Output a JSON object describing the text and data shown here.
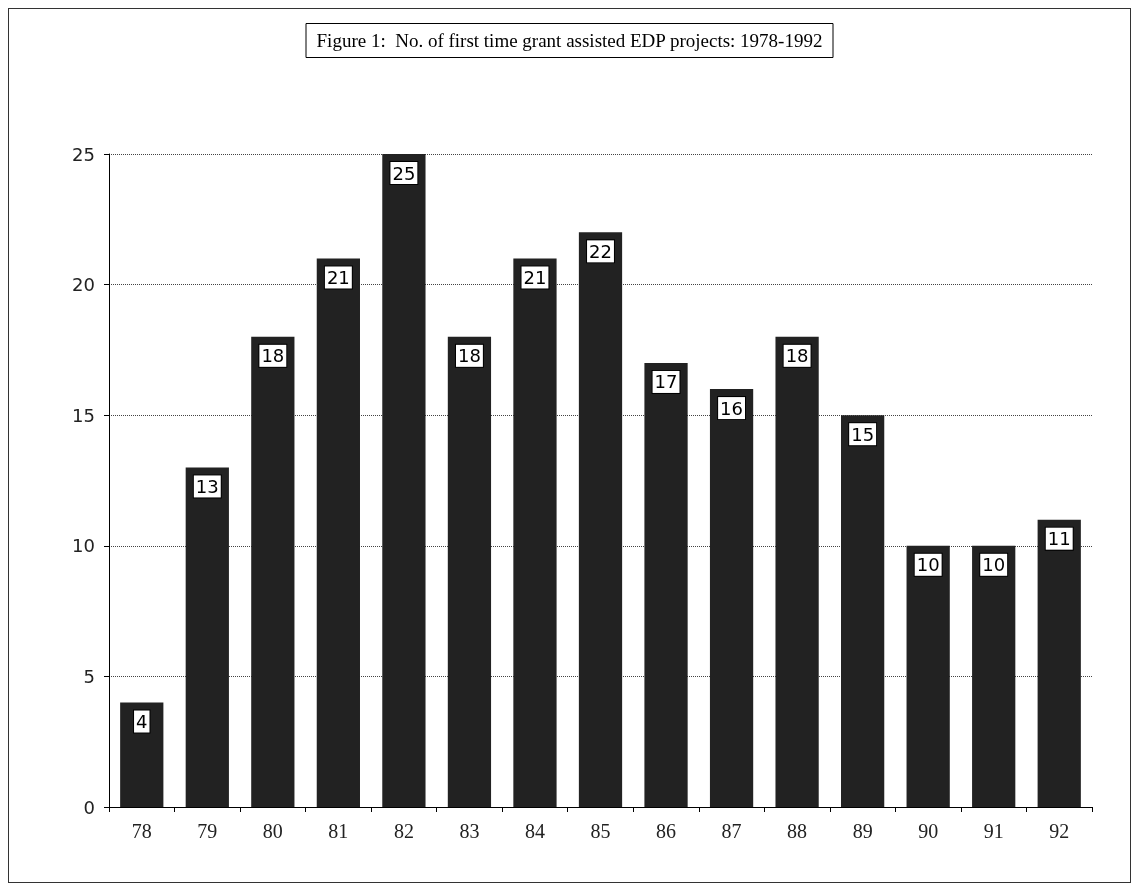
{
  "chart_data": {
    "type": "bar",
    "title": "Figure 1:  No. of first time grant assisted EDP projects: 1978-1992",
    "categories": [
      "78",
      "79",
      "80",
      "81",
      "82",
      "83",
      "84",
      "85",
      "86",
      "87",
      "88",
      "89",
      "90",
      "91",
      "92"
    ],
    "values": [
      4,
      13,
      18,
      21,
      25,
      18,
      21,
      22,
      17,
      16,
      18,
      15,
      10,
      10,
      11
    ],
    "color": "#222222",
    "ylim": [
      0,
      25
    ],
    "yticks": [
      0,
      5,
      10,
      15,
      20,
      25
    ],
    "grid": "y",
    "data_labels": true
  }
}
